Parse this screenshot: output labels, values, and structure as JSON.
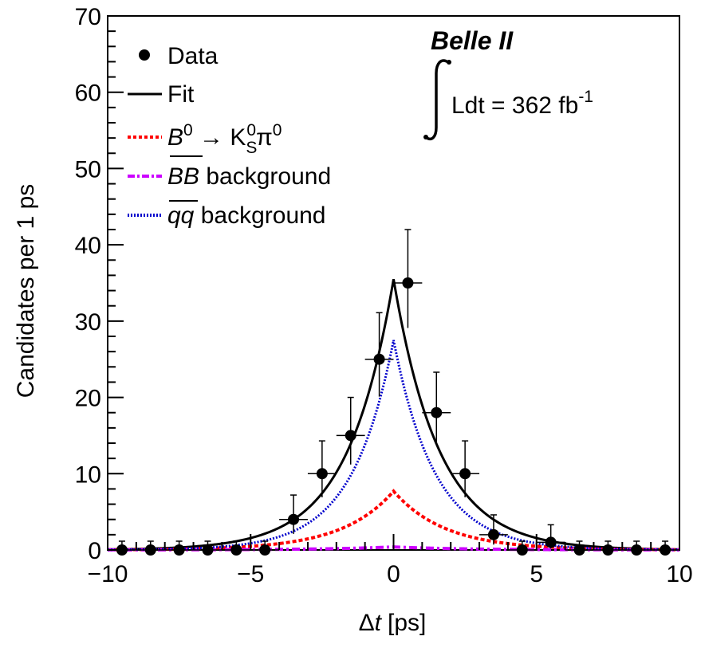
{
  "chart_data": {
    "type": "scatter",
    "xlabel_symbol": "Δ",
    "xlabel_var": "t",
    "xlabel_unit": "[ps]",
    "ylabel": "Candidates per 1 ps",
    "xlim": [
      -10,
      10
    ],
    "ylim": [
      0,
      70
    ],
    "x_ticks": [
      -10,
      -5,
      0,
      5,
      10
    ],
    "x_tick_labels": [
      "−10",
      "−5",
      "0",
      "5",
      "10"
    ],
    "y_ticks": [
      0,
      10,
      20,
      30,
      40,
      50,
      60,
      70
    ],
    "y_tick_labels": [
      "0",
      "10",
      "20",
      "30",
      "40",
      "50",
      "60",
      "70"
    ],
    "grid": false,
    "legend_position": "top-left",
    "experiment": "Belle II",
    "luminosity_prefix": "Ldt = 362 fb",
    "luminosity_exp": "-1",
    "data_points": {
      "name": "Data",
      "x": [
        -9.5,
        -8.5,
        -7.5,
        -6.5,
        -5.5,
        -4.5,
        -3.5,
        -2.5,
        -1.5,
        -0.5,
        0.5,
        1.5,
        2.5,
        3.5,
        4.5,
        5.5,
        6.5,
        7.5,
        8.5,
        9.5
      ],
      "y": [
        0,
        0,
        0,
        0,
        0,
        0,
        4,
        10,
        15,
        25,
        35,
        18,
        10,
        2,
        0,
        1,
        0,
        0,
        0,
        0
      ],
      "err_up": [
        1.15,
        1.15,
        1.15,
        1.15,
        1.15,
        1.15,
        3.2,
        4.3,
        5.0,
        6.1,
        7.0,
        5.3,
        4.3,
        2.6,
        1.15,
        2.3,
        1.15,
        1.15,
        1.15,
        1.15
      ],
      "err_down": [
        0,
        0,
        0,
        0,
        0,
        0,
        1.9,
        3.1,
        3.8,
        4.9,
        5.9,
        4.2,
        3.1,
        1.3,
        0,
        0.8,
        0,
        0,
        0,
        0
      ]
    },
    "series": [
      {
        "name": "Fit",
        "color": "#000000",
        "style": "solid",
        "peak": 35.5,
        "tau": 1.6
      },
      {
        "name_prefix": "B",
        "name_sup": "0",
        "name_arrow": "→ K",
        "name_sub": "S",
        "name_sup2": "0",
        "name_tail": "π",
        "name_sup3": "0",
        "color": "#ff0000",
        "style": "dotted",
        "peak": 7.7,
        "tau": 1.8
      },
      {
        "name_italic": "BB",
        "name_rest": " background",
        "color": "#cc00ff",
        "style": "dashdot",
        "peak": 0.4,
        "tau": 2.5
      },
      {
        "name_italic": "qq",
        "name_rest": " background",
        "color": "#0000cc",
        "style": "dashed-fine",
        "peak": 27.5,
        "tau": 1.45
      }
    ],
    "legend": {
      "data": "Data",
      "fit": "Fit",
      "signal_b": "B",
      "signal_sup0": "0",
      "signal_arrow": " → K",
      "signal_sub": "S",
      "signal_sup1": "0",
      "signal_pi": "π",
      "signal_sup2": "0",
      "bb_label": "BB",
      "bb_rest": " background",
      "qq_label": "qq",
      "qq_rest": " background"
    }
  }
}
